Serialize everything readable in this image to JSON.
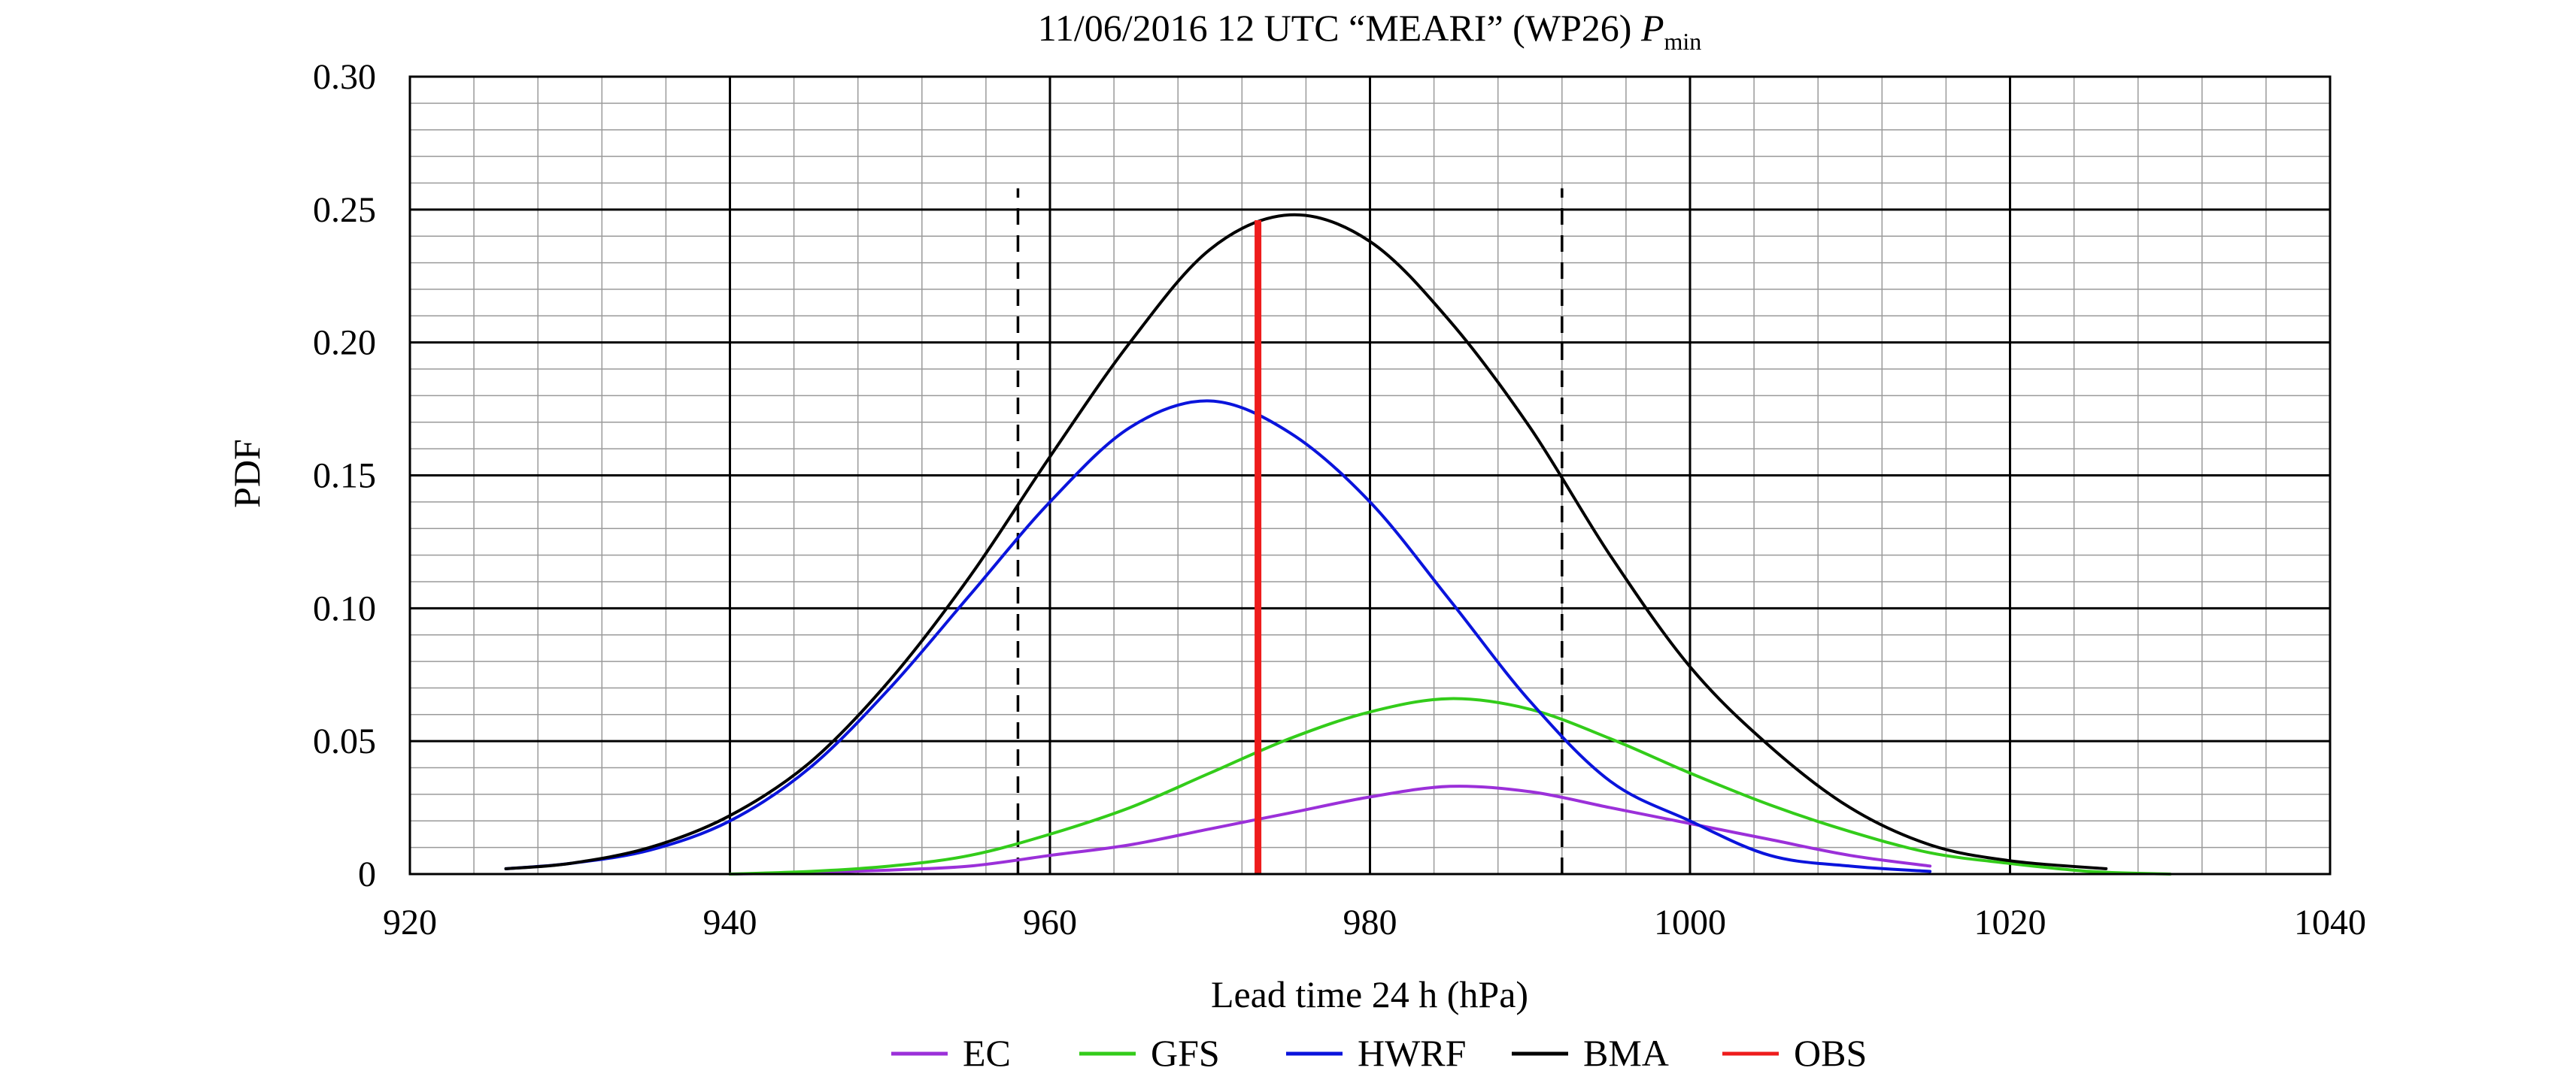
{
  "chart_data": {
    "type": "line",
    "title": {
      "main": "11/06/2016 12 UTC “MEARI” (WP26) ",
      "var": "P",
      "sub": "min"
    },
    "xlabel": "Lead time 24 h (hPa)",
    "ylabel": "PDF",
    "xlim": [
      920,
      1040
    ],
    "ylim": [
      0,
      0.3
    ],
    "xticks": [
      920,
      940,
      960,
      980,
      1000,
      1020,
      1040
    ],
    "xtick_labels": [
      "920",
      "940",
      "960",
      "980",
      "1000",
      "1020",
      "1040"
    ],
    "yticks": [
      0,
      0.05,
      0.1,
      0.15,
      0.2,
      0.25,
      0.3
    ],
    "ytick_labels": [
      "0",
      "0.05",
      "0.10",
      "0.15",
      "0.20",
      "0.25",
      "0.30"
    ],
    "minor_x_step": 4,
    "minor_y_step": 0.01,
    "grid": true,
    "legend_position": "bottom",
    "series": [
      {
        "name": "EC",
        "color": "#9b30d9",
        "x": [
          940,
          945,
          950,
          955,
          960,
          965,
          970,
          975,
          980,
          985,
          990,
          995,
          1000,
          1005,
          1010,
          1015
        ],
        "values": [
          0.0,
          0.0005,
          0.0015,
          0.003,
          0.007,
          0.011,
          0.017,
          0.023,
          0.029,
          0.033,
          0.031,
          0.025,
          0.019,
          0.013,
          0.007,
          0.003
        ]
      },
      {
        "name": "GFS",
        "color": "#33cc1a",
        "x": [
          940,
          945,
          950,
          955,
          960,
          965,
          970,
          975,
          980,
          985,
          990,
          995,
          1000,
          1005,
          1010,
          1015,
          1020,
          1025,
          1030
        ],
        "values": [
          0.0,
          0.001,
          0.003,
          0.007,
          0.015,
          0.025,
          0.038,
          0.051,
          0.061,
          0.066,
          0.062,
          0.051,
          0.038,
          0.026,
          0.016,
          0.008,
          0.004,
          0.001,
          0.0
        ]
      },
      {
        "name": "HWRF",
        "color": "#0a14dc",
        "x": [
          926,
          930,
          935,
          940,
          945,
          950,
          955,
          960,
          965,
          970,
          975,
          980,
          985,
          990,
          995,
          1000,
          1005,
          1010,
          1015
        ],
        "values": [
          0.002,
          0.004,
          0.009,
          0.02,
          0.04,
          0.07,
          0.105,
          0.14,
          0.168,
          0.178,
          0.166,
          0.14,
          0.103,
          0.065,
          0.035,
          0.02,
          0.007,
          0.003,
          0.001
        ]
      },
      {
        "name": "BMA",
        "color": "#000000",
        "x": [
          926,
          930,
          935,
          940,
          945,
          950,
          955,
          960,
          965,
          970,
          975,
          980,
          985,
          990,
          995,
          1000,
          1005,
          1010,
          1015,
          1020,
          1026
        ],
        "values": [
          0.002,
          0.004,
          0.01,
          0.022,
          0.042,
          0.073,
          0.112,
          0.157,
          0.2,
          0.235,
          0.248,
          0.238,
          0.208,
          0.168,
          0.12,
          0.078,
          0.048,
          0.025,
          0.011,
          0.005,
          0.002
        ]
      }
    ],
    "obs": {
      "name": "OBS",
      "color": "#ee1c1c",
      "x": 973,
      "y_top": 0.246
    },
    "dashed_bounds": {
      "x": [
        958,
        992
      ],
      "y_top": 0.258
    },
    "legend": [
      {
        "label": "EC",
        "color": "#9b30d9"
      },
      {
        "label": "GFS",
        "color": "#33cc1a"
      },
      {
        "label": "HWRF",
        "color": "#0a14dc"
      },
      {
        "label": "BMA",
        "color": "#000000"
      },
      {
        "label": "OBS",
        "color": "#ee1c1c"
      }
    ]
  }
}
